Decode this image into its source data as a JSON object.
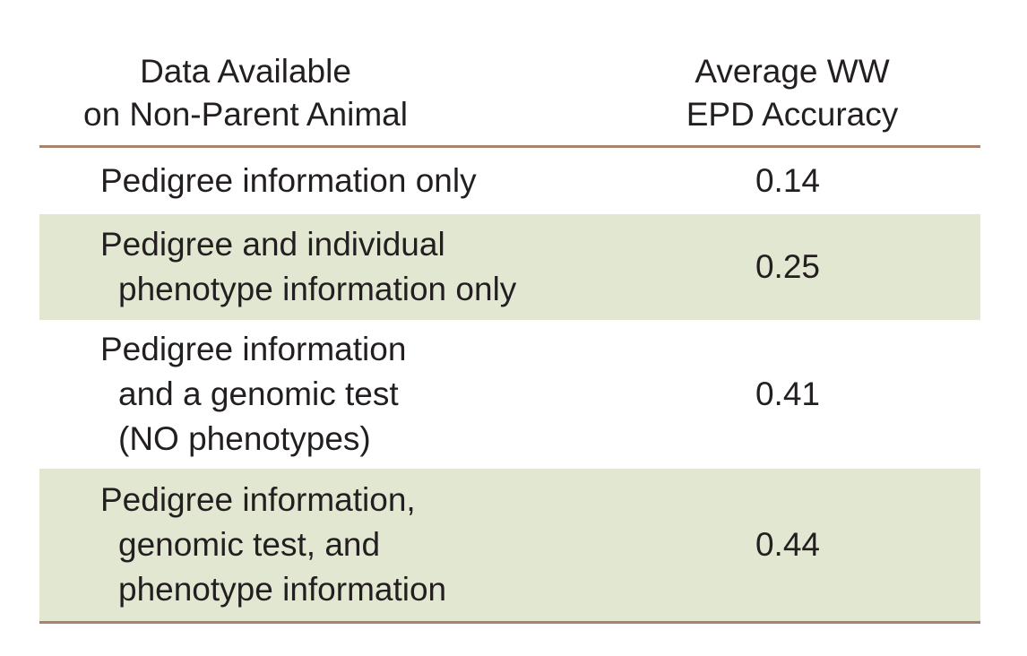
{
  "header": {
    "col1_line1": "Data Available",
    "col1_line2": "on Non-Parent Animal",
    "col2_line1": "Average WW",
    "col2_line2": "EPD Accuracy"
  },
  "rows": [
    {
      "label_lines": [
        "Pedigree information only"
      ],
      "value": "0.14"
    },
    {
      "label_lines": [
        "Pedigree and individual",
        "phenotype information only"
      ],
      "value": "0.25"
    },
    {
      "label_lines": [
        "Pedigree information",
        "and a genomic test",
        "(NO phenotypes)"
      ],
      "value": "0.41"
    },
    {
      "label_lines": [
        "Pedigree information,",
        "genomic test, and",
        "phenotype information"
      ],
      "value": "0.44"
    }
  ],
  "colors": {
    "rule": "#a8826a",
    "shaded_row": "#e1e7d1"
  }
}
